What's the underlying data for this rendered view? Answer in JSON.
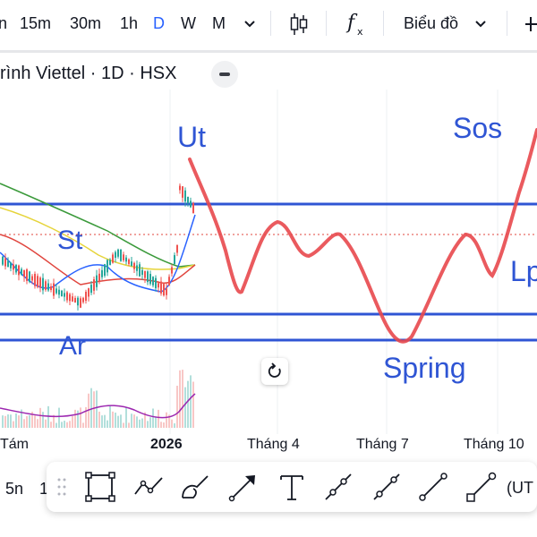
{
  "toolbar": {
    "intervals": [
      "n",
      "15m",
      "30m",
      "1h",
      "D",
      "W",
      "M"
    ],
    "active_interval": "D",
    "chart_type_label": "Biểu đồ",
    "icons": [
      "chevron-down-icon",
      "candlestick-icon",
      "indicator-fx-icon",
      "plus-icon"
    ]
  },
  "symbol": {
    "title": "rình Viettel · 1D · HSX"
  },
  "annotations": {
    "ut": "Ut",
    "st": "St",
    "ar": "Ar",
    "sos": "Sos",
    "spring": "Spring",
    "lp": "Lp"
  },
  "axis": {
    "labels": [
      "Tám",
      "2026",
      "Tháng 4",
      "Tháng 7",
      "Tháng 10"
    ]
  },
  "bottom": {
    "left_interval_a": "5n",
    "left_interval_b": "1",
    "right_label": "(UT",
    "tools": [
      "rectangle-tool-icon",
      "path-tool-icon",
      "brush-tool-icon",
      "arrow-tool-icon",
      "text-tool-icon",
      "ray-tool-icon",
      "extended-line-icon",
      "trend-line-icon",
      "ellipse-line-icon"
    ]
  },
  "colors": {
    "accent": "#2962ff",
    "wyckoff_path": "#e8484c",
    "range_lines": "#2f55d4",
    "ma_green": "#3b9a3b",
    "ma_yellow": "#e6d43a",
    "ma_red": "#e0453e",
    "ma_blue": "#2962ff",
    "volume_ma": "#9c27b0"
  }
}
